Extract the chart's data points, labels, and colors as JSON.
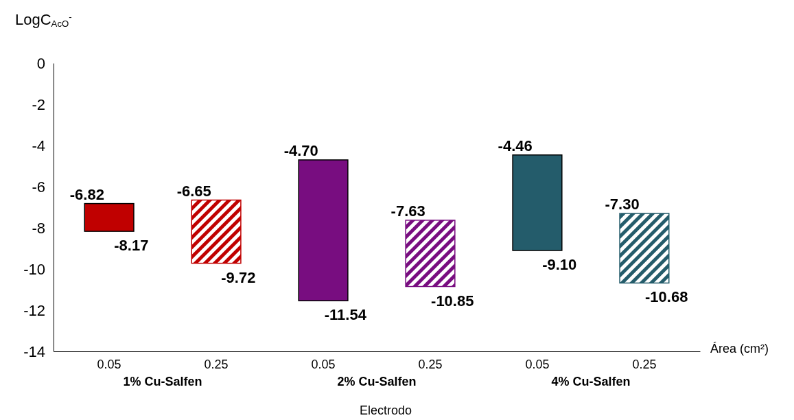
{
  "chart_data": {
    "type": "bar",
    "ylabel": "LogC$_{AcO}$$^{-}$",
    "xlabel": "Electrodo",
    "categories": [
      "0.05",
      "0.25",
      "0.05",
      "0.25",
      "0.05",
      "0.25"
    ],
    "base": [
      -8.17,
      -9.72,
      -11.54,
      -10.85,
      -9.1,
      -10.68
    ],
    "values": [
      1.35,
      3.07,
      6.84,
      3.22,
      4.64,
      3.38
    ],
    "colors": [
      "#c00000",
      "#c00000",
      "#780d80",
      "#780d80",
      "#245c6b",
      "#245c6b"
    ],
    "ylim": [
      -14,
      0
    ],
    "yticks": [
      -14,
      -12,
      -10,
      -8,
      -6,
      -4,
      -2,
      0
    ],
    "annotations": [
      "1% Cu-Salfen",
      "2% Cu-Salfen",
      "4% Cu-Salfen",
      "Área (cm²)",
      {
        "text": "-6.82",
        "y": -6.82
      },
      {
        "text": "-8.17",
        "y": -8.17
      },
      {
        "text": "-6.65",
        "y": -6.65
      },
      {
        "text": "-9.72",
        "y": -9.72
      },
      {
        "text": "-4.70",
        "y": -4.7
      },
      {
        "text": "-11.54",
        "y": -11.54
      },
      {
        "text": "-7.63",
        "y": -7.63
      },
      {
        "text": "-10.85",
        "y": -10.85
      },
      {
        "text": "-4.46",
        "y": -4.46
      },
      {
        "text": "-9.10",
        "y": -9.1
      },
      {
        "text": "-7.30",
        "y": -7.3
      },
      {
        "text": "-10.68",
        "y": -10.68
      }
    ]
  }
}
